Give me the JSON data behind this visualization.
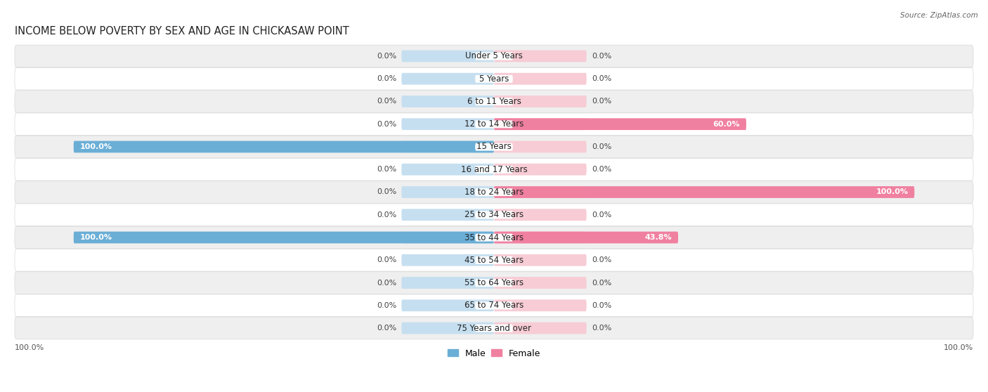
{
  "title": "INCOME BELOW POVERTY BY SEX AND AGE IN CHICKASAW POINT",
  "source": "Source: ZipAtlas.com",
  "categories": [
    "Under 5 Years",
    "5 Years",
    "6 to 11 Years",
    "12 to 14 Years",
    "15 Years",
    "16 and 17 Years",
    "18 to 24 Years",
    "25 to 34 Years",
    "35 to 44 Years",
    "45 to 54 Years",
    "55 to 64 Years",
    "65 to 74 Years",
    "75 Years and over"
  ],
  "male_values": [
    0.0,
    0.0,
    0.0,
    0.0,
    100.0,
    0.0,
    0.0,
    0.0,
    100.0,
    0.0,
    0.0,
    0.0,
    0.0
  ],
  "female_values": [
    0.0,
    0.0,
    0.0,
    60.0,
    0.0,
    0.0,
    100.0,
    0.0,
    43.8,
    0.0,
    0.0,
    0.0,
    0.0
  ],
  "male_color": "#6aaed6",
  "female_color": "#f080a0",
  "bar_bg_male": "#c6dff0",
  "bar_bg_female": "#f7ccd5",
  "row_bg_light": "#efefef",
  "row_bg_white": "#ffffff",
  "row_border": "#d8d8d8",
  "max_value": 100.0,
  "bar_height": 0.52,
  "bg_bar_width": 22,
  "label_fontsize": 8.0,
  "category_fontsize": 8.5,
  "title_fontsize": 10.5,
  "axis_label_fontsize": 8.0,
  "legend_fontsize": 9.0
}
